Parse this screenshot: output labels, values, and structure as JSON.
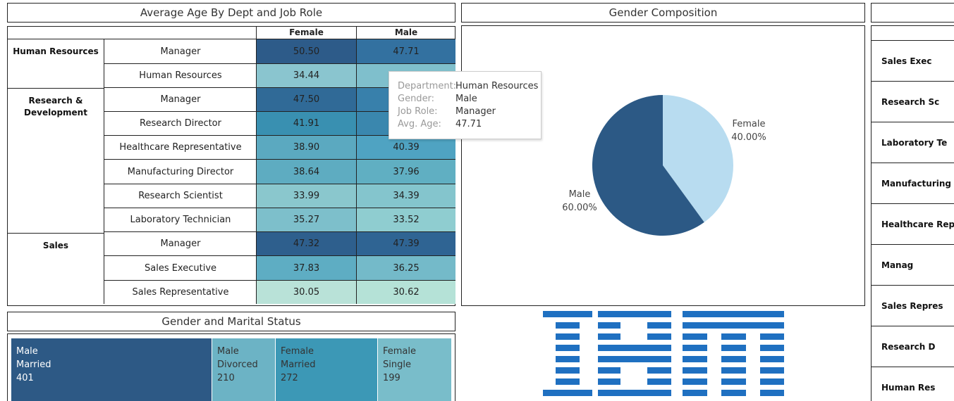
{
  "titles": {
    "heatmap": "Average Age By Dept and Job Role",
    "pie": "Gender Composition",
    "treemap": "Gender and Marital Status"
  },
  "heatmap": {
    "columns": [
      "Female",
      "Male"
    ],
    "departments": [
      "Human Resources",
      "Research & Development",
      "Sales"
    ],
    "rows": [
      {
        "role": "Manager",
        "female": "50.50",
        "male": "47.71"
      },
      {
        "role": "Human Resources",
        "female": "34.44",
        "male": ""
      },
      {
        "role": "Manager",
        "female": "47.50",
        "male": ""
      },
      {
        "role": "Research Director",
        "female": "41.91",
        "male": ""
      },
      {
        "role": "Healthcare Representative",
        "female": "38.90",
        "male": "40.39"
      },
      {
        "role": "Manufacturing Director",
        "female": "38.64",
        "male": "37.96"
      },
      {
        "role": "Research Scientist",
        "female": "33.99",
        "male": "34.39"
      },
      {
        "role": "Laboratory Technician",
        "female": "35.27",
        "male": "33.52"
      },
      {
        "role": "Manager",
        "female": "47.32",
        "male": "47.39"
      },
      {
        "role": "Sales Executive",
        "female": "37.83",
        "male": "36.25"
      },
      {
        "role": "Sales Representative",
        "female": "30.05",
        "male": "30.62"
      }
    ],
    "colors": {
      "female": [
        "#2d5b89",
        "#8ac5cf",
        "#306a97",
        "#3990b1",
        "#5ba9c0",
        "#5eacc1",
        "#8ac7cd",
        "#7dbfcb",
        "#2e5f8d",
        "#5eadc3",
        "#b9e2d8"
      ],
      "male": [
        "#3371a0",
        "#7fbfcc",
        "#3880ab",
        "#3a87ae",
        "#4fa3c2",
        "#60afc2",
        "#84c5cd",
        "#8fcdd0",
        "#2f6493",
        "#74bac9",
        "#b5e2d7"
      ]
    }
  },
  "tooltip": {
    "rows": [
      {
        "k": "Department:",
        "v": "Human Resources"
      },
      {
        "k": "Gender:",
        "v": "Male"
      },
      {
        "k": "Job Role:",
        "v": "Manager"
      },
      {
        "k": "Avg. Age:",
        "v": "47.71"
      }
    ]
  },
  "chart_data": {
    "type": "pie",
    "title": "Gender Composition",
    "slices": [
      {
        "name": "Female",
        "label": "40.00%",
        "value": 40.0,
        "color": "#b8dcf0"
      },
      {
        "name": "Male",
        "label": "60.00%",
        "value": 60.0,
        "color": "#2c5985"
      }
    ]
  },
  "treemap": {
    "tiles": [
      {
        "gender": "Male",
        "status": "Married",
        "count": "401",
        "color": "#2d5985",
        "dark": true
      },
      {
        "gender": "Male",
        "status": "Divorced",
        "count": "210",
        "color": "#6cb3c5",
        "dark": false
      },
      {
        "gender": "Female",
        "status": "Married",
        "count": "272",
        "color": "#3c98b6",
        "dark": false
      },
      {
        "gender": "Female",
        "status": "Single",
        "count": "199",
        "color": "#79bdca",
        "dark": false
      }
    ]
  },
  "right_panel": {
    "rows": [
      "Sales Exec",
      "Research Sc",
      "Laboratory Te",
      "Manufacturing",
      "Healthcare Repr",
      "Manag",
      "Sales Repres",
      "Research D",
      "Human Res"
    ]
  },
  "logo": {
    "text": "IBM",
    "color": "#1f70c1"
  }
}
